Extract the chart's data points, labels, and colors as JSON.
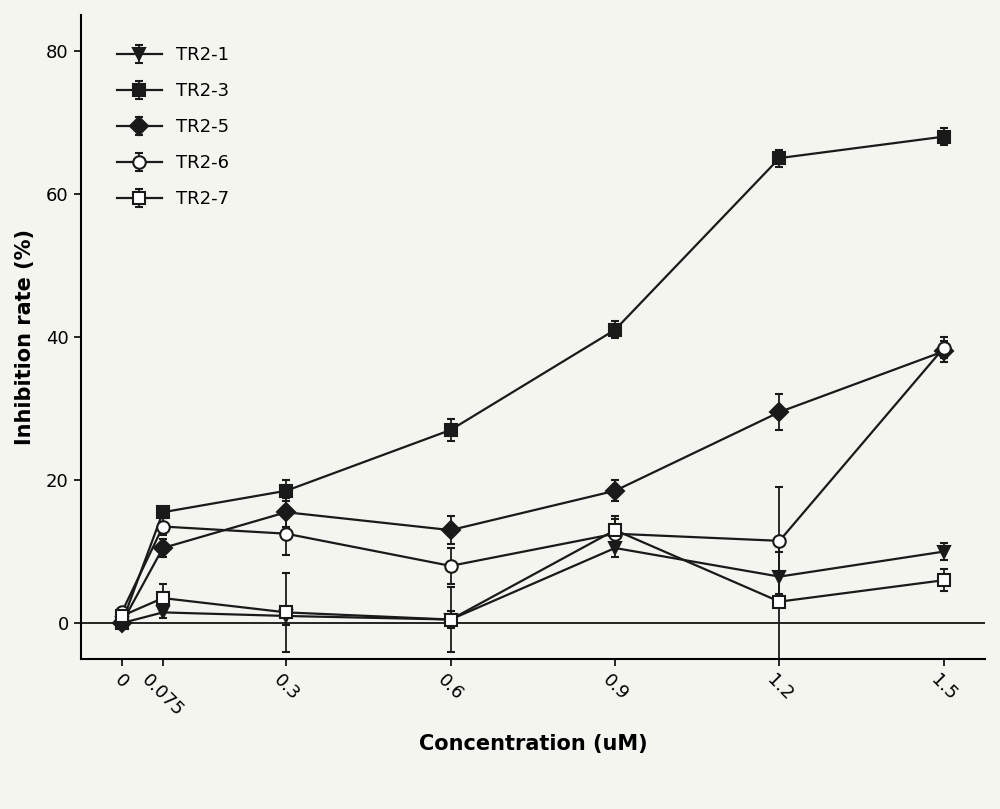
{
  "x": [
    0,
    0.075,
    0.3,
    0.6,
    0.9,
    1.2,
    1.5
  ],
  "series": {
    "TR2-1": {
      "y": [
        0,
        1.5,
        1.0,
        0.5,
        10.5,
        6.5,
        10.0
      ],
      "yerr": [
        0.3,
        0.8,
        1.2,
        1.2,
        1.2,
        3.5,
        1.2
      ],
      "color": "#1a1a1a",
      "marker": "v",
      "markersize": 9,
      "mfc": "#1a1a1a",
      "mec": "#1a1a1a"
    },
    "TR2-3": {
      "y": [
        0,
        15.5,
        18.5,
        27.0,
        41.0,
        65.0,
        68.0
      ],
      "yerr": [
        0.3,
        0.8,
        1.5,
        1.5,
        1.2,
        1.2,
        1.2
      ],
      "color": "#1a1a1a",
      "marker": "s",
      "markersize": 9,
      "mfc": "#1a1a1a",
      "mec": "#1a1a1a"
    },
    "TR2-5": {
      "y": [
        0,
        10.5,
        15.5,
        13.0,
        18.5,
        29.5,
        38.0
      ],
      "yerr": [
        0.3,
        1.2,
        2.0,
        2.0,
        1.5,
        2.5,
        1.5
      ],
      "color": "#1a1a1a",
      "marker": "D",
      "markersize": 9,
      "mfc": "#1a1a1a",
      "mec": "#1a1a1a"
    },
    "TR2-6": {
      "y": [
        1.5,
        13.5,
        12.5,
        8.0,
        12.5,
        11.5,
        38.5
      ],
      "yerr": [
        0.3,
        1.2,
        3.0,
        2.5,
        2.0,
        7.5,
        1.5
      ],
      "color": "#1a1a1a",
      "marker": "o",
      "markersize": 9,
      "mfc": "white",
      "mec": "#1a1a1a"
    },
    "TR2-7": {
      "y": [
        1.0,
        3.5,
        1.5,
        0.5,
        13.0,
        3.0,
        6.0
      ],
      "yerr": [
        0.3,
        2.0,
        5.5,
        4.5,
        2.0,
        8.5,
        1.5
      ],
      "color": "#1a1a1a",
      "marker": "s",
      "markersize": 9,
      "mfc": "white",
      "mec": "#1a1a1a"
    }
  },
  "xlabel": "Concentration (uM)",
  "ylabel": "Inhibition rate (%)",
  "ylim": [
    -5,
    85
  ],
  "yticks": [
    0,
    20,
    40,
    60,
    80
  ],
  "x_positions": [
    0,
    0.075,
    0.3,
    0.6,
    0.9,
    1.2,
    1.5
  ],
  "xtick_labels": [
    "0",
    "0.075",
    "0.3",
    "0.6",
    "0.9",
    "1.2",
    "1.5"
  ],
  "legend_order": [
    "TR2-1",
    "TR2-3",
    "TR2-5",
    "TR2-6",
    "TR2-7"
  ],
  "axis_fontsize": 15,
  "tick_fontsize": 13,
  "legend_fontsize": 13,
  "background_color": "#f5f5f0",
  "linewidth": 1.6
}
